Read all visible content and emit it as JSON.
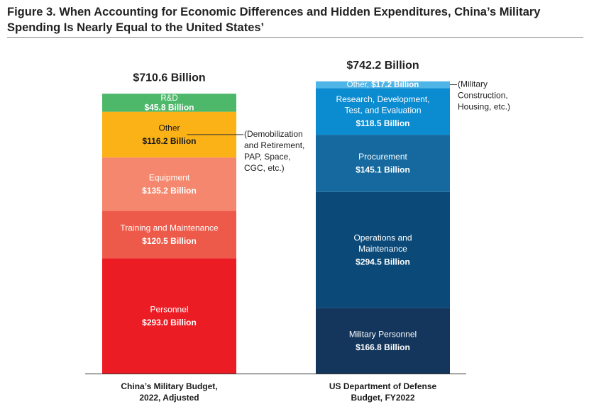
{
  "figure": {
    "title_line1": "Figure 3. When Accounting for Economic Differences and Hidden Expenditures, China’s Military",
    "title_line2": "Spending Is Nearly Equal to the United States’"
  },
  "chart_data": {
    "type": "bar",
    "stacked": true,
    "title": "Figure 3. When Accounting for Economic Differences and Hidden Expenditures, China’s Military Spending Is Nearly Equal to the United States’",
    "unit": "Billion USD",
    "ylim": [
      0,
      765
    ],
    "grid": false,
    "bars": [
      {
        "category_lines": [
          "China’s Military Budget,",
          "2022, Adjusted"
        ],
        "total_label": "$710.6 Billion",
        "segments": [
          {
            "name_lines": [
              "Personnel"
            ],
            "value": 293.0,
            "value_label": "$293.0 Billion",
            "color": "#ec1c24"
          },
          {
            "name_lines": [
              "Training and Maintenance"
            ],
            "value": 120.5,
            "value_label": "$120.5 Billion",
            "color": "#ee5a4a"
          },
          {
            "name_lines": [
              "Equipment"
            ],
            "value": 135.2,
            "value_label": "$135.2 Billion",
            "color": "#f4876d"
          },
          {
            "name_lines": [
              "Other"
            ],
            "value": 116.2,
            "value_label": "$116.2 Billion",
            "color": "#fbb217",
            "dark_text": true,
            "annotation_lines": [
              "(Demobilization",
              "and Retirement,",
              "PAP, Space,",
              "CGC, etc.)"
            ]
          },
          {
            "name_lines": [
              "R&D"
            ],
            "value": 45.8,
            "value_label": "$45.8 Billion",
            "color": "#4db86a",
            "compact": true
          }
        ]
      },
      {
        "category_lines": [
          "US Department of Defense",
          "Budget, FY2022"
        ],
        "total_label": "$742.2 Billion",
        "segments": [
          {
            "name_lines": [
              "Military Personnel"
            ],
            "value": 166.8,
            "value_label": "$166.8 Billion",
            "color": "#14365c"
          },
          {
            "name_lines": [
              "Operations and",
              "Maintenance"
            ],
            "value": 294.5,
            "value_label": "$294.5 Billion",
            "color": "#0b4a78"
          },
          {
            "name_lines": [
              "Procurement"
            ],
            "value": 145.1,
            "value_label": "$145.1 Billion",
            "color": "#15699e"
          },
          {
            "name_lines": [
              "Research, Development,",
              "Test, and Evaluation"
            ],
            "value": 118.5,
            "value_label": "$118.5 Billion",
            "color": "#0b8bd0"
          },
          {
            "name_lines": [
              "Other, "
            ],
            "value": 17.2,
            "value_label": "$17.2 Billion",
            "color": "#4fb4e6",
            "inline": true,
            "annotation_lines": [
              "(Military",
              "Construction,",
              "Housing, etc.)"
            ]
          }
        ]
      }
    ]
  }
}
